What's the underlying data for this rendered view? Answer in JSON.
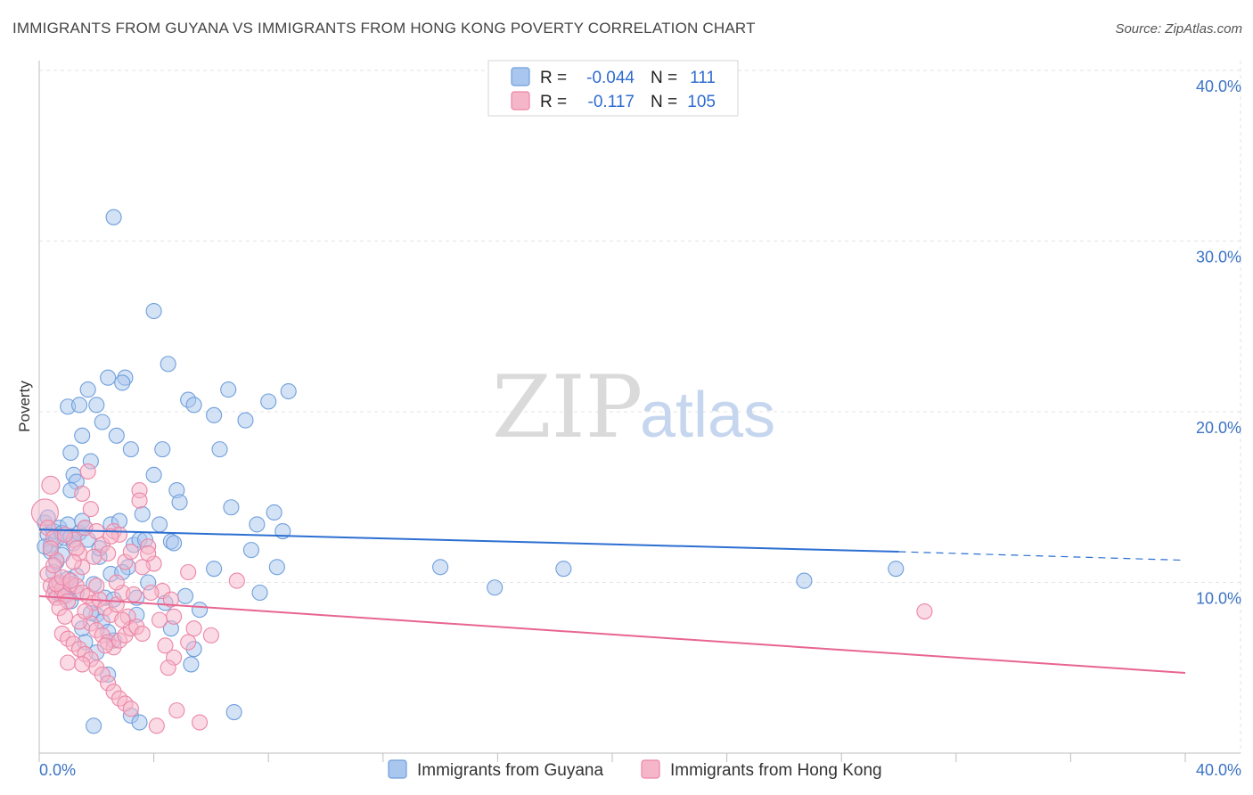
{
  "title": "IMMIGRANTS FROM GUYANA VS IMMIGRANTS FROM HONG KONG POVERTY CORRELATION CHART",
  "source": "Source: ZipAtlas.com",
  "watermark": {
    "part1": "ZIP",
    "part2": "atlas"
  },
  "legend": {
    "r_label": "R =",
    "n_label": "N =",
    "series": [
      {
        "r": "-0.044",
        "n": "111"
      },
      {
        "r": "-0.117",
        "n": "105"
      }
    ]
  },
  "bottom_legend": [
    "Immigrants from Guyana",
    "Immigrants from Hong Kong"
  ],
  "colors": {
    "guyana_fill": "#a9c6ee",
    "guyana_stroke": "#6f9fdc",
    "guyana_line": "#2c6fd1",
    "hk_fill": "#f5b6c9",
    "hk_stroke": "#ec86a6",
    "hk_line": "#e8658f",
    "tick": "#3b73c5"
  },
  "chart_data": {
    "type": "scatter",
    "title": "IMMIGRANTS FROM GUYANA VS IMMIGRANTS FROM HONG KONG POVERTY CORRELATION CHART",
    "xlabel": "",
    "ylabel": "Poverty",
    "xlim": [
      0,
      40
    ],
    "ylim": [
      0,
      40
    ],
    "x_tick_labels": [
      "0.0%",
      "40.0%"
    ],
    "y_tick_labels": [
      "10.0%",
      "20.0%",
      "30.0%",
      "40.0%"
    ],
    "y_ticks": [
      10,
      20,
      30,
      40
    ],
    "grid": true,
    "legend_position": "top-center",
    "series": [
      {
        "name": "Immigrants from Guyana",
        "trend": {
          "x_start": 0,
          "y_start": 13.1,
          "x_end": 30,
          "y_end": 11.8,
          "x_dash_end": 40,
          "y_dash_end": 11.3
        },
        "points": [
          [
            0.2,
            13.5
          ],
          [
            0.3,
            12.8
          ],
          [
            0.4,
            12.2
          ],
          [
            0.5,
            13.0
          ],
          [
            0.6,
            12.5
          ],
          [
            0.7,
            13.2
          ],
          [
            0.8,
            12.9
          ],
          [
            0.9,
            12.6
          ],
          [
            1.0,
            13.4
          ],
          [
            1.1,
            12.7
          ],
          [
            0.4,
            11.8
          ],
          [
            0.6,
            11.2
          ],
          [
            0.8,
            11.6
          ],
          [
            1.2,
            12.3
          ],
          [
            1.4,
            12.9
          ],
          [
            0.5,
            10.6
          ],
          [
            0.9,
            9.9
          ],
          [
            1.3,
            9.4
          ],
          [
            1.5,
            13.6
          ],
          [
            1.7,
            12.5
          ],
          [
            1.0,
            20.3
          ],
          [
            1.4,
            20.4
          ],
          [
            1.7,
            21.3
          ],
          [
            1.5,
            18.6
          ],
          [
            1.1,
            17.6
          ],
          [
            1.8,
            17.1
          ],
          [
            1.2,
            16.3
          ],
          [
            1.3,
            15.9
          ],
          [
            1.1,
            15.4
          ],
          [
            1.6,
            13.2
          ],
          [
            2.0,
            20.4
          ],
          [
            2.2,
            19.4
          ],
          [
            2.4,
            22.0
          ],
          [
            2.7,
            18.6
          ],
          [
            3.0,
            22.0
          ],
          [
            2.9,
            21.7
          ],
          [
            3.2,
            17.8
          ],
          [
            2.5,
            13.4
          ],
          [
            2.8,
            13.6
          ],
          [
            3.3,
            12.2
          ],
          [
            2.6,
            31.4
          ],
          [
            4.0,
            25.9
          ],
          [
            4.5,
            22.8
          ],
          [
            5.2,
            20.7
          ],
          [
            5.4,
            20.4
          ],
          [
            6.1,
            19.8
          ],
          [
            6.3,
            17.8
          ],
          [
            6.6,
            21.3
          ],
          [
            7.2,
            19.5
          ],
          [
            8.0,
            20.6
          ],
          [
            8.7,
            21.2
          ],
          [
            4.3,
            17.8
          ],
          [
            4.0,
            16.3
          ],
          [
            4.8,
            15.4
          ],
          [
            4.9,
            14.7
          ],
          [
            3.6,
            14.0
          ],
          [
            4.2,
            13.4
          ],
          [
            3.5,
            12.5
          ],
          [
            4.6,
            12.4
          ],
          [
            4.7,
            12.3
          ],
          [
            6.7,
            14.4
          ],
          [
            7.6,
            13.4
          ],
          [
            8.2,
            14.1
          ],
          [
            8.5,
            13.0
          ],
          [
            7.4,
            11.9
          ],
          [
            8.3,
            10.9
          ],
          [
            6.1,
            10.8
          ],
          [
            7.7,
            9.4
          ],
          [
            5.1,
            9.2
          ],
          [
            5.6,
            8.4
          ],
          [
            2.1,
            11.5
          ],
          [
            2.5,
            10.5
          ],
          [
            3.1,
            10.9
          ],
          [
            1.9,
            9.9
          ],
          [
            2.3,
            9.1
          ],
          [
            2.6,
            9.0
          ],
          [
            3.4,
            9.1
          ],
          [
            3.8,
            10.0
          ],
          [
            3.4,
            8.1
          ],
          [
            2.0,
            8.1
          ],
          [
            1.5,
            7.3
          ],
          [
            2.6,
            6.6
          ],
          [
            4.6,
            7.3
          ],
          [
            5.4,
            6.1
          ],
          [
            5.3,
            5.2
          ],
          [
            2.0,
            5.9
          ],
          [
            2.4,
            4.6
          ],
          [
            3.2,
            2.2
          ],
          [
            3.5,
            1.8
          ],
          [
            1.9,
            1.6
          ],
          [
            6.8,
            2.4
          ],
          [
            14.0,
            10.9
          ],
          [
            15.9,
            9.7
          ],
          [
            18.3,
            10.8
          ],
          [
            26.7,
            10.1
          ],
          [
            29.9,
            10.8
          ],
          [
            1.8,
            8.2
          ],
          [
            2.2,
            7.7
          ],
          [
            0.7,
            9.6
          ],
          [
            1.1,
            8.9
          ],
          [
            1.3,
            10.4
          ],
          [
            0.8,
            9.2
          ],
          [
            2.9,
            10.6
          ],
          [
            3.7,
            12.5
          ],
          [
            2.1,
            12.0
          ],
          [
            4.4,
            8.8
          ],
          [
            1.6,
            6.5
          ],
          [
            2.4,
            7.1
          ],
          [
            0.3,
            13.8
          ],
          [
            0.2,
            12.1
          ],
          [
            1.0,
            10.2
          ]
        ]
      },
      {
        "name": "Immigrants from Hong Kong",
        "trend": {
          "x_start": 0,
          "y_start": 9.2,
          "x_end": 40,
          "y_end": 4.7
        },
        "points": [
          [
            0.2,
            14.1
          ],
          [
            0.3,
            13.2
          ],
          [
            0.4,
            15.7
          ],
          [
            0.5,
            12.6
          ],
          [
            0.6,
            11.3
          ],
          [
            0.3,
            10.5
          ],
          [
            0.4,
            9.8
          ],
          [
            0.5,
            9.3
          ],
          [
            0.6,
            9.1
          ],
          [
            0.7,
            10.0
          ],
          [
            0.8,
            9.6
          ],
          [
            0.9,
            9.2
          ],
          [
            1.0,
            8.9
          ],
          [
            1.1,
            9.9
          ],
          [
            0.7,
            8.5
          ],
          [
            0.9,
            8.0
          ],
          [
            1.2,
            12.5
          ],
          [
            1.4,
            11.7
          ],
          [
            1.5,
            10.9
          ],
          [
            1.6,
            13.2
          ],
          [
            1.3,
            12.0
          ],
          [
            1.5,
            15.2
          ],
          [
            1.7,
            16.5
          ],
          [
            1.8,
            14.3
          ],
          [
            2.0,
            13.0
          ],
          [
            2.2,
            12.2
          ],
          [
            2.4,
            11.7
          ],
          [
            2.6,
            13.0
          ],
          [
            2.8,
            12.8
          ],
          [
            3.0,
            11.2
          ],
          [
            3.2,
            11.8
          ],
          [
            3.5,
            15.4
          ],
          [
            3.5,
            14.8
          ],
          [
            3.8,
            12.1
          ],
          [
            4.0,
            11.1
          ],
          [
            3.6,
            10.9
          ],
          [
            4.3,
            9.5
          ],
          [
            4.6,
            9.0
          ],
          [
            4.7,
            8.0
          ],
          [
            4.2,
            7.8
          ],
          [
            1.3,
            9.8
          ],
          [
            1.5,
            9.4
          ],
          [
            1.7,
            9.2
          ],
          [
            1.9,
            8.8
          ],
          [
            2.1,
            9.0
          ],
          [
            2.3,
            8.5
          ],
          [
            2.5,
            8.1
          ],
          [
            2.7,
            8.7
          ],
          [
            2.9,
            9.4
          ],
          [
            3.1,
            8.0
          ],
          [
            1.8,
            7.6
          ],
          [
            2.0,
            7.2
          ],
          [
            2.2,
            6.9
          ],
          [
            2.4,
            6.5
          ],
          [
            2.6,
            6.2
          ],
          [
            2.8,
            6.6
          ],
          [
            3.0,
            6.9
          ],
          [
            3.2,
            7.3
          ],
          [
            3.4,
            7.4
          ],
          [
            3.6,
            7.0
          ],
          [
            0.8,
            7.0
          ],
          [
            1.0,
            6.7
          ],
          [
            1.2,
            6.4
          ],
          [
            1.4,
            6.1
          ],
          [
            1.6,
            5.8
          ],
          [
            1.8,
            5.5
          ],
          [
            2.0,
            5.0
          ],
          [
            2.2,
            4.6
          ],
          [
            2.4,
            4.1
          ],
          [
            2.6,
            3.6
          ],
          [
            2.8,
            3.2
          ],
          [
            3.0,
            2.9
          ],
          [
            3.2,
            2.6
          ],
          [
            4.8,
            2.5
          ],
          [
            5.6,
            1.8
          ],
          [
            4.1,
            1.6
          ],
          [
            5.4,
            7.3
          ],
          [
            6.0,
            6.9
          ],
          [
            5.2,
            6.5
          ],
          [
            4.7,
            5.6
          ],
          [
            4.5,
            5.0
          ],
          [
            5.2,
            10.6
          ],
          [
            6.9,
            10.1
          ],
          [
            4.4,
            6.3
          ],
          [
            30.9,
            8.3
          ],
          [
            1.0,
            5.3
          ],
          [
            1.5,
            5.2
          ],
          [
            0.6,
            9.9
          ],
          [
            0.8,
            10.3
          ],
          [
            1.1,
            10.1
          ],
          [
            2.0,
            9.8
          ],
          [
            2.7,
            10.0
          ],
          [
            3.3,
            9.3
          ],
          [
            1.4,
            7.7
          ],
          [
            2.3,
            6.3
          ],
          [
            0.9,
            12.8
          ],
          [
            1.2,
            11.2
          ],
          [
            1.9,
            11.5
          ],
          [
            2.5,
            12.7
          ],
          [
            3.8,
            11.7
          ],
          [
            0.4,
            12.0
          ],
          [
            0.5,
            11.0
          ],
          [
            1.6,
            8.3
          ],
          [
            2.9,
            7.8
          ],
          [
            3.9,
            9.4
          ]
        ]
      }
    ]
  }
}
